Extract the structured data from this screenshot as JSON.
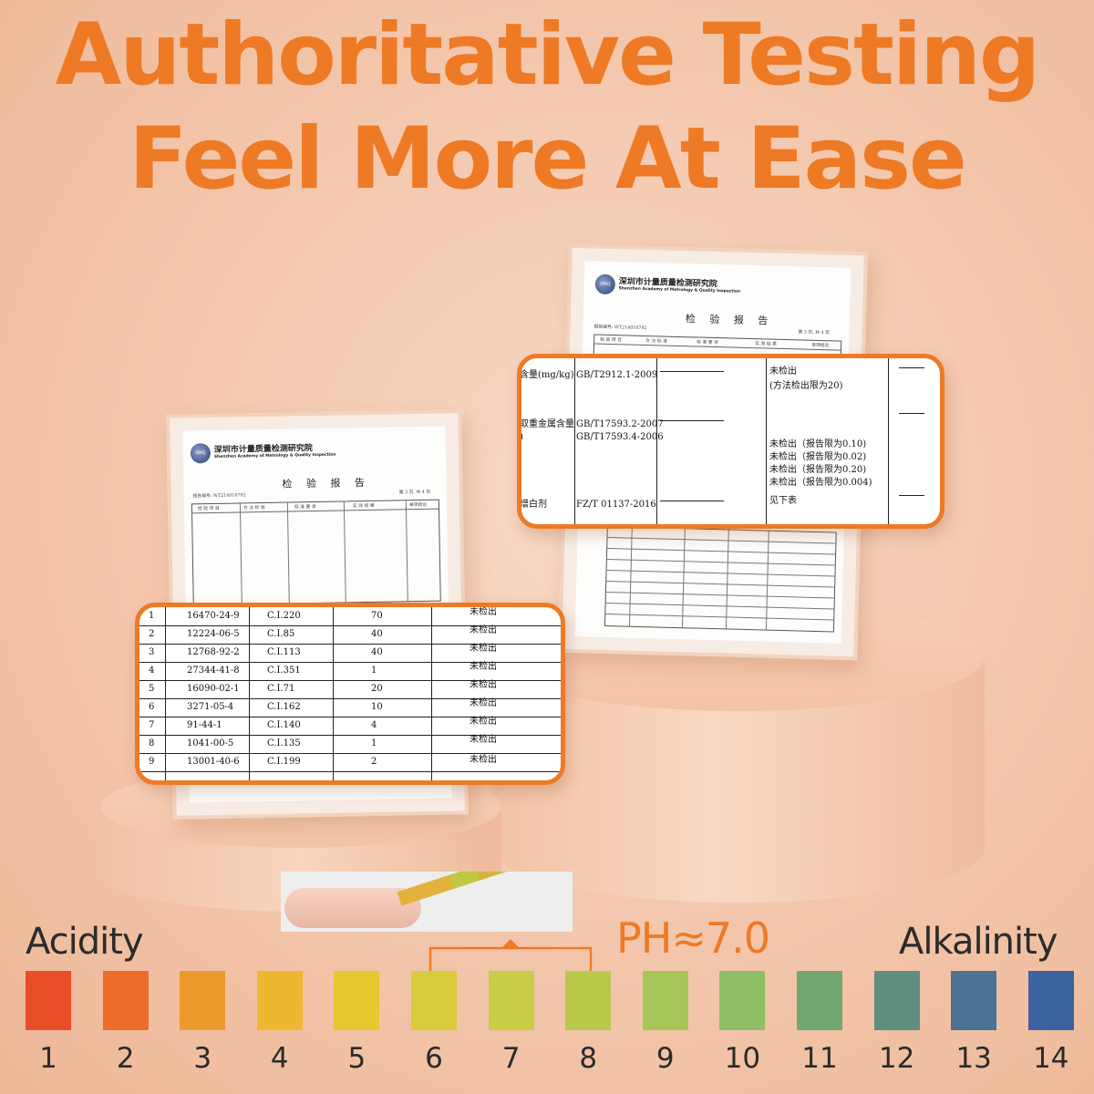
{
  "headline": {
    "line1": "Authoritative Testing",
    "line2": "Feel More At Ease"
  },
  "report": {
    "org_cn": "深圳市计量质量检测研究院",
    "org_en": "Shenzhen Academy of Metrology & Quality Inspection",
    "logo_text": "SMQ",
    "title": "检 验 报 告",
    "report_no": "报告编号: WT214016792",
    "page_info": "第 3 页, 共 4 页",
    "columns": [
      "检 验 项 目",
      "方 法 标 准",
      "标 准 要 求",
      "实 测 结 果",
      "单项结论"
    ]
  },
  "callout_top": {
    "items": [
      {
        "item": "含量(mg/kg)",
        "method": "GB/T2912.1-2009",
        "results": [
          "未检出",
          "(方法检出限为20)"
        ]
      },
      {
        "item": "取重金属含量",
        "method_lines": [
          "GB/T17593.2-2007",
          "GB/T17593.4-2006"
        ],
        "results": [
          "未检出（报告限为0.10)",
          "未检出（报告限为0.02)",
          "未检出（报告限为0.20)",
          "未检出（报告限为0.004)"
        ]
      },
      {
        "item": "增白剂",
        "method": "FZ/T 01137-2016",
        "results": [
          "见下表"
        ]
      }
    ],
    "item_suffix": ")"
  },
  "callout_bottom": {
    "rows": [
      {
        "no": "1",
        "cas": "16470-24-9",
        "ci": "C.I.220",
        "limit": "70",
        "result": "未检出"
      },
      {
        "no": "2",
        "cas": "12224-06-5",
        "ci": "C.I.85",
        "limit": "40",
        "result": "未检出"
      },
      {
        "no": "3",
        "cas": "12768-92-2",
        "ci": "C.I.113",
        "limit": "40",
        "result": "未检出"
      },
      {
        "no": "4",
        "cas": "27344-41-8",
        "ci": "C.I.351",
        "limit": "1",
        "result": "未检出"
      },
      {
        "no": "5",
        "cas": "16090-02-1",
        "ci": "C.I.71",
        "limit": "20",
        "result": "未检出"
      },
      {
        "no": "6",
        "cas": "3271-05-4",
        "ci": "C.I.162",
        "limit": "10",
        "result": "未检出"
      },
      {
        "no": "7",
        "cas": "91-44-1",
        "ci": "C.I.140",
        "limit": "4",
        "result": "未检出"
      },
      {
        "no": "8",
        "cas": "1041-00-5",
        "ci": "C.I.135",
        "limit": "1",
        "result": "未检出"
      },
      {
        "no": "9",
        "cas": "13001-40-6",
        "ci": "C.I.199",
        "limit": "2",
        "result": "未检出"
      }
    ]
  },
  "scale": {
    "left_label": "Acidity",
    "right_label": "Alkalinity",
    "ph_label": "PH≈7.0",
    "ph_value": 7.0,
    "swatches": [
      {
        "num": "1",
        "color": "#e84e2a"
      },
      {
        "num": "2",
        "color": "#ec6c2a"
      },
      {
        "num": "3",
        "color": "#ed9a2c"
      },
      {
        "num": "4",
        "color": "#edb82f"
      },
      {
        "num": "5",
        "color": "#e4c82f"
      },
      {
        "num": "6",
        "color": "#d9cb3c"
      },
      {
        "num": "7",
        "color": "#c9cc46"
      },
      {
        "num": "8",
        "color": "#b9c94c"
      },
      {
        "num": "9",
        "color": "#a6c658"
      },
      {
        "num": "10",
        "color": "#8fbe64"
      },
      {
        "num": "11",
        "color": "#72a772"
      },
      {
        "num": "12",
        "color": "#5e8e80"
      },
      {
        "num": "13",
        "color": "#4c7294"
      },
      {
        "num": "14",
        "color": "#3d62a0"
      }
    ]
  }
}
